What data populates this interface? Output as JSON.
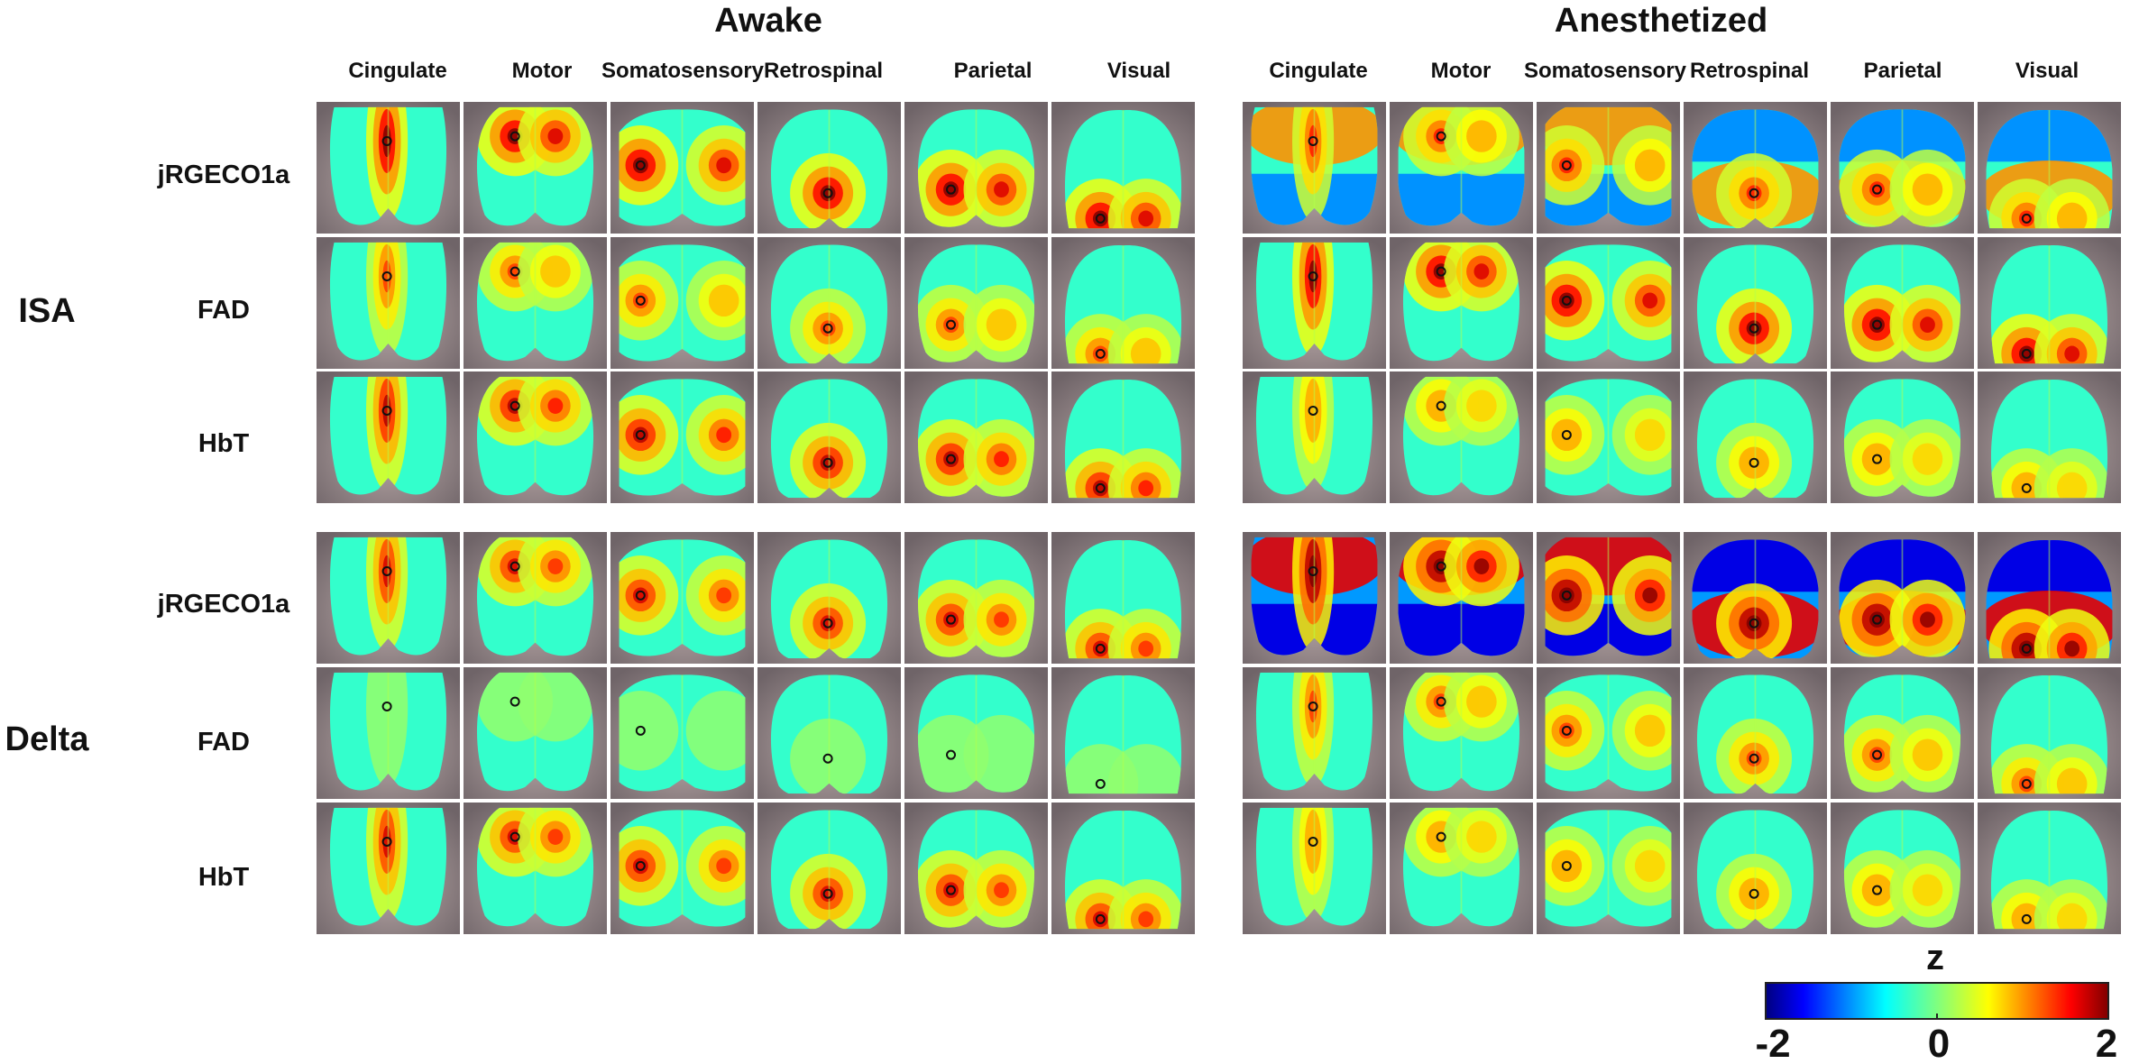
{
  "figure": {
    "conditions": [
      {
        "key": "awake",
        "title": "Awake"
      },
      {
        "key": "anesthetized",
        "title": "Anesthetized"
      }
    ],
    "regions": [
      "Cingulate",
      "Motor",
      "Somatosensory",
      "Retrospinal",
      "Parietal",
      "Visual"
    ],
    "bands": [
      {
        "label": "ISA",
        "contrasts": [
          "jRGECO1a",
          "FAD",
          "HbT"
        ]
      },
      {
        "label": "Delta",
        "contrasts": [
          "jRGECO1a",
          "FAD",
          "HbT"
        ]
      }
    ],
    "colorbar": {
      "label": "z",
      "min_label": "-2",
      "mid_label": "0",
      "max_label": "2",
      "vmin": -2,
      "vmax": 2,
      "colormap": "jet"
    },
    "seed_marker": "small black circle marking seed location",
    "colors": {
      "background_skull": "#8a7c80",
      "panel_frame": "#9aa0b0"
    }
  }
}
